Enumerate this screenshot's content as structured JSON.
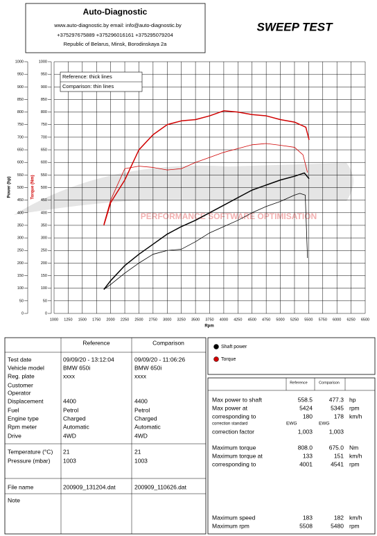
{
  "header": {
    "title": "Auto-Diagnostic",
    "contacts": "www.auto-diagnostic.by      email: info@auto-diagnostic.by",
    "phones": "+375297675889  +375296016161  +375295079204",
    "address": "Republic of Belarus, Minsk, Borodinskaya 2a",
    "report_title": "SWEEP TEST"
  },
  "chart_data": {
    "type": "line",
    "x_label": "Rpm",
    "y_label": "Power (hp)",
    "y_label_2": "Torque (Nm)",
    "y_label_2_color": "#d00000",
    "watermark": "PERFORMANCE SOFTWARE OPTIMISATION",
    "notes": [
      "Reference: thick lines",
      "Comparison: thin lines"
    ],
    "xlim": [
      1000,
      6500
    ],
    "xticks": [
      1000,
      1250,
      1500,
      1750,
      2000,
      2250,
      2500,
      2750,
      3000,
      3250,
      3500,
      3750,
      4000,
      4250,
      4500,
      4750,
      5000,
      5250,
      5500,
      5750,
      6000,
      6250,
      6500
    ],
    "ylim": [
      0,
      1000
    ],
    "yticks": [
      0,
      50,
      100,
      150,
      200,
      250,
      300,
      350,
      400,
      450,
      500,
      550,
      600,
      650,
      700,
      750,
      800,
      850,
      900,
      950,
      1000
    ],
    "grid": true,
    "series": [
      {
        "color": "#000000",
        "style": "thick",
        "x": [
          1880,
          2000,
          2250,
          2500,
          2750,
          3000,
          3250,
          3500,
          3750,
          4000,
          4250,
          4500,
          4750,
          5000,
          5250,
          5424,
          5508
        ],
        "values": [
          95,
          130,
          190,
          235,
          275,
          315,
          345,
          370,
          400,
          430,
          460,
          490,
          510,
          530,
          545,
          558,
          535
        ]
      },
      {
        "color": "#000000",
        "style": "thin",
        "x": [
          1880,
          2000,
          2250,
          2500,
          2750,
          3000,
          3250,
          3500,
          3750,
          4000,
          4250,
          4500,
          4750,
          5000,
          5250,
          5345,
          5440,
          5480
        ],
        "values": [
          95,
          115,
          160,
          200,
          235,
          250,
          255,
          285,
          320,
          345,
          370,
          400,
          425,
          445,
          470,
          477,
          470,
          220
        ]
      },
      {
        "color": "#d00000",
        "style": "thick",
        "x": [
          1880,
          2000,
          2250,
          2500,
          2750,
          3000,
          3250,
          3500,
          3750,
          4000,
          4250,
          4500,
          4750,
          5000,
          5250,
          5450,
          5508
        ],
        "values": [
          350,
          440,
          530,
          650,
          710,
          750,
          765,
          770,
          785,
          805,
          800,
          790,
          785,
          770,
          760,
          740,
          690
        ]
      },
      {
        "color": "#d00000",
        "style": "thin",
        "x": [
          1880,
          2000,
          2250,
          2500,
          2750,
          3000,
          3250,
          3500,
          3750,
          4000,
          4250,
          4500,
          4750,
          5000,
          5250,
          5400,
          5480
        ],
        "values": [
          355,
          450,
          575,
          585,
          580,
          570,
          575,
          600,
          620,
          640,
          655,
          670,
          675,
          668,
          660,
          630,
          560
        ]
      }
    ],
    "legend": [
      {
        "name": "Shaft power",
        "color": "#000000"
      },
      {
        "name": "Torque",
        "color": "#d00000"
      }
    ]
  },
  "left_table": {
    "headers": [
      "Reference",
      "Comparison"
    ],
    "rows": [
      {
        "label": "Test date",
        "values": [
          "09/09/20 - 13:12:04",
          "09/09/20 - 11:06:26"
        ]
      },
      {
        "label": "Vehicle model",
        "values": [
          "BMW 650i",
          "BMW 650i"
        ]
      },
      {
        "label": "Reg. plate",
        "values": [
          "xxxx",
          "xxxx"
        ]
      },
      {
        "label": "Customer"
      },
      {
        "label": "Operator"
      },
      {
        "label": "Displacement",
        "values": [
          "4400",
          "4400"
        ]
      },
      {
        "label": "Fuel",
        "values": [
          "Petrol",
          "Petrol"
        ]
      },
      {
        "label": "Engine type",
        "values": [
          "Charged",
          "Charged"
        ]
      },
      {
        "label": "Rpm meter",
        "values": [
          "Automatic",
          "Automatic"
        ]
      },
      {
        "label": "Drive",
        "values": [
          "4WD",
          "4WD"
        ]
      },
      {
        "label": "Temperature (°C)",
        "values": [
          "21",
          "21"
        ]
      },
      {
        "label": "Pressure (mbar)",
        "values": [
          "1003",
          "1003"
        ]
      },
      {
        "label": "File name",
        "values": [
          "200909_131204.dat",
          "200909_110626.dat"
        ]
      },
      {
        "label": "Note"
      }
    ]
  },
  "right_table": {
    "headers": [
      "Reference",
      "Comparison"
    ],
    "rows": [
      {
        "label": "Max power to shaft",
        "values": [
          "558.5",
          "477.3"
        ],
        "unit": "hp"
      },
      {
        "label": "Max power at",
        "values": [
          "5424",
          "5345"
        ],
        "unit": "rpm"
      },
      {
        "label": "corresponding to",
        "values": [
          "180",
          "178"
        ],
        "unit": "km/h"
      },
      {
        "label": "correction standard",
        "values": [
          "EWG",
          "EWG"
        ]
      },
      {
        "label": "correction factor",
        "values": [
          "1,003",
          "1,003"
        ]
      },
      {
        "label": "Maximum torque",
        "values": [
          "808.0",
          "675.0"
        ],
        "unit": "Nm"
      },
      {
        "label": "Maximum torque at",
        "values": [
          "133",
          "151"
        ],
        "unit": "km/h"
      },
      {
        "label": "corresponding to",
        "values": [
          "4001",
          "4541"
        ],
        "unit": "rpm"
      },
      {
        "label": "Maximum speed",
        "values": [
          "183",
          "182"
        ],
        "unit": "km/h"
      },
      {
        "label": "Maximum rpm",
        "values": [
          "5508",
          "5480"
        ],
        "unit": "rpm"
      }
    ]
  }
}
